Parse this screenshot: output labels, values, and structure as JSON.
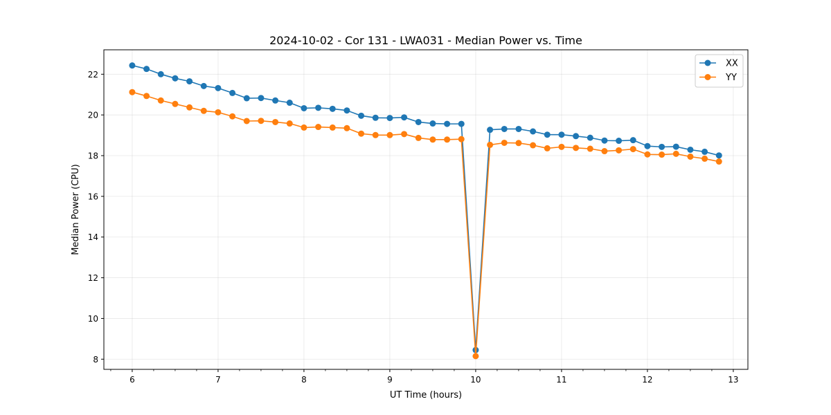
{
  "chart_data": {
    "type": "line",
    "title": "2024-10-02 - Cor 131 - LWA031 - Median Power vs. Time",
    "xlabel": "UT Time (hours)",
    "ylabel": "Median Power (CPU)",
    "xlim": [
      5.67,
      13.17
    ],
    "ylim": [
      7.5,
      23.2
    ],
    "grid": true,
    "legend_position": "top-right",
    "x_ticks": [
      6,
      7,
      8,
      9,
      10,
      11,
      12,
      13
    ],
    "x_minor_step": 0.25,
    "y_ticks": [
      8,
      10,
      12,
      14,
      16,
      18,
      20,
      22
    ],
    "x": [
      6.0,
      6.1667,
      6.3333,
      6.5,
      6.6667,
      6.8333,
      7.0,
      7.1667,
      7.3333,
      7.5,
      7.6667,
      7.8333,
      8.0,
      8.1667,
      8.3333,
      8.5,
      8.6667,
      8.8333,
      9.0,
      9.1667,
      9.3333,
      9.5,
      9.6667,
      9.8333,
      10.0,
      10.1667,
      10.3333,
      10.5,
      10.6667,
      10.8333,
      11.0,
      11.1667,
      11.3333,
      11.5,
      11.6667,
      11.8333,
      12.0,
      12.1667,
      12.3333,
      12.5,
      12.6667,
      12.8333
    ],
    "series": [
      {
        "name": "XX",
        "color": "#1f77b4",
        "values": [
          22.43,
          22.26,
          22.0,
          21.8,
          21.65,
          21.42,
          21.32,
          21.08,
          20.82,
          20.83,
          20.71,
          20.6,
          20.33,
          20.35,
          20.3,
          20.22,
          19.96,
          19.86,
          19.85,
          19.88,
          19.65,
          19.58,
          19.56,
          19.56,
          8.45,
          19.27,
          19.31,
          19.31,
          19.19,
          19.03,
          19.03,
          18.96,
          18.88,
          18.74,
          18.73,
          18.76,
          18.47,
          18.43,
          18.44,
          18.29,
          18.19,
          18.01
        ]
      },
      {
        "name": "YY",
        "color": "#ff7f0e",
        "values": [
          21.12,
          20.93,
          20.71,
          20.54,
          20.37,
          20.2,
          20.13,
          19.93,
          19.7,
          19.71,
          19.65,
          19.58,
          19.38,
          19.41,
          19.38,
          19.35,
          19.08,
          19.01,
          19.01,
          19.06,
          18.87,
          18.79,
          18.79,
          18.81,
          8.15,
          18.53,
          18.63,
          18.62,
          18.51,
          18.36,
          18.43,
          18.38,
          18.34,
          18.22,
          18.26,
          18.32,
          18.06,
          18.05,
          18.09,
          17.95,
          17.85,
          17.71
        ]
      }
    ]
  }
}
